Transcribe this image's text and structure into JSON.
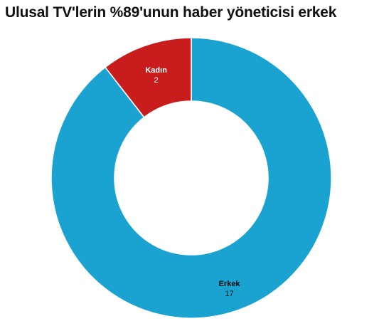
{
  "title": "Ulusal TV'lerin %89'unun haber yöneticisi erkek",
  "chart_data": {
    "type": "pie",
    "variant": "donut",
    "title": "Ulusal TV'lerin %89'unun haber yöneticisi erkek",
    "slices": [
      {
        "label": "Erkek",
        "value": 17,
        "value_label": "17",
        "color": "#1aa3d0"
      },
      {
        "label": "Kadın",
        "value": 2,
        "value_label": "2",
        "color": "#c91d1d"
      }
    ],
    "legend": "none"
  }
}
